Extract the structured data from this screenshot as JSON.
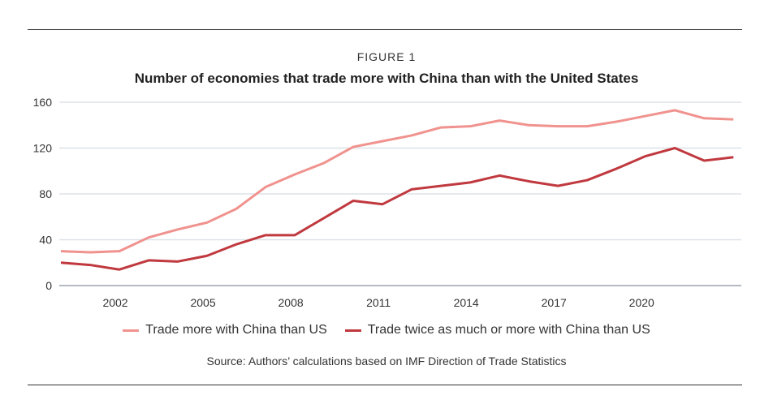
{
  "figure_label": "FIGURE 1",
  "source": "Source: Authors’ calculations based on IMF Direction of Trade Statistics",
  "chart_data": {
    "type": "line",
    "title": "Number of economies that trade more with China than with the United States",
    "xlabel": "",
    "ylabel": "",
    "x": [
      2000,
      2001,
      2002,
      2003,
      2004,
      2005,
      2006,
      2007,
      2008,
      2009,
      2010,
      2011,
      2012,
      2013,
      2014,
      2015,
      2016,
      2017,
      2018,
      2019,
      2020,
      2021,
      2022,
      2023
    ],
    "xticks": [
      2002,
      2005,
      2008,
      2011,
      2014,
      2017,
      2020
    ],
    "yticks": [
      0,
      40,
      80,
      120,
      160
    ],
    "ylim": [
      0,
      160
    ],
    "grid": "horizontal",
    "legend_position": "bottom",
    "series": [
      {
        "name": "Trade more with China than US",
        "color": "#f0928e",
        "values": [
          30,
          29,
          30,
          42,
          49,
          55,
          67,
          86,
          97,
          107,
          121,
          126,
          131,
          138,
          139,
          144,
          140,
          139,
          139,
          143,
          148,
          153,
          146,
          145
        ]
      },
      {
        "name": "Trade twice as much or more with China than US",
        "color": "#c0393f",
        "values": [
          20,
          18,
          14,
          22,
          21,
          26,
          36,
          44,
          44,
          59,
          74,
          71,
          84,
          87,
          90,
          96,
          91,
          87,
          92,
          102,
          113,
          120,
          109,
          112
        ]
      }
    ]
  }
}
